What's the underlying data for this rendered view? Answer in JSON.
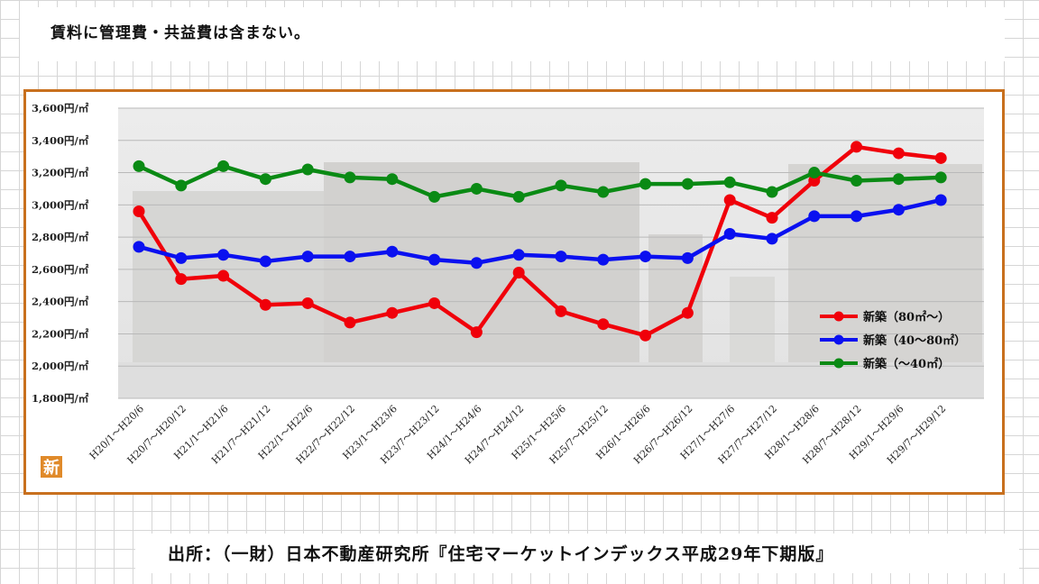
{
  "note": "賃料に管理費・共益費は含まない。",
  "source": "出所：（一財）日本不動産研究所『住宅マーケットインデックス平成29年下期版』",
  "logo_char": "新",
  "colors": {
    "frame": "#c8701e",
    "red": "#f0000a",
    "blue": "#0a10f0",
    "green": "#0a8a14"
  },
  "chart_data": {
    "type": "line",
    "title": "",
    "xlabel": "",
    "ylabel": "",
    "ylim": [
      1800,
      3600
    ],
    "y_ticks": [
      "1,800円/㎡",
      "2,000円/㎡",
      "2,200円/㎡",
      "2,400円/㎡",
      "2,600円/㎡",
      "2,800円/㎡",
      "3,000円/㎡",
      "3,200円/㎡",
      "3,400円/㎡",
      "3,600円/㎡"
    ],
    "y_tick_values": [
      1800,
      2000,
      2200,
      2400,
      2600,
      2800,
      3000,
      3200,
      3400,
      3600
    ],
    "grid": true,
    "legend": "bottom-right",
    "categories": [
      "H20/1～H20/6",
      "H20/7～H20/12",
      "H21/1～H21/6",
      "H21/7～H21/12",
      "H22/1～H22/6",
      "H22/7～H22/12",
      "H23/1～H23/6",
      "H23/7～H23/12",
      "H24/1～H24/6",
      "H24/7～H24/12",
      "H25/1～H25/6",
      "H25/7～H25/12",
      "H26/1～H26/6",
      "H26/7～H26/12",
      "H27/1～H27/6",
      "H27/7～H27/12",
      "H28/1～H28/6",
      "H28/7～H28/12",
      "H29/1～H29/6",
      "H29/7～H29/12"
    ],
    "series": [
      {
        "name": "新築（80㎡～）",
        "color": "#f0000a",
        "values": [
          2960,
          2540,
          2560,
          2380,
          2390,
          2270,
          2330,
          2390,
          2210,
          2580,
          2340,
          2260,
          2190,
          2330,
          3030,
          2920,
          3150,
          3360,
          3320,
          3290
        ]
      },
      {
        "name": "新築（40～80㎡）",
        "color": "#0a10f0",
        "values": [
          2740,
          2670,
          2690,
          2650,
          2680,
          2680,
          2710,
          2660,
          2640,
          2690,
          2680,
          2660,
          2680,
          2670,
          2820,
          2790,
          2930,
          2930,
          2970,
          3030
        ]
      },
      {
        "name": "新築（～40㎡）",
        "color": "#0a8a14",
        "values": [
          3240,
          3120,
          3240,
          3160,
          3220,
          3170,
          3160,
          3050,
          3100,
          3050,
          3120,
          3080,
          3130,
          3130,
          3140,
          3080,
          3200,
          3150,
          3160,
          3170
        ]
      }
    ]
  }
}
